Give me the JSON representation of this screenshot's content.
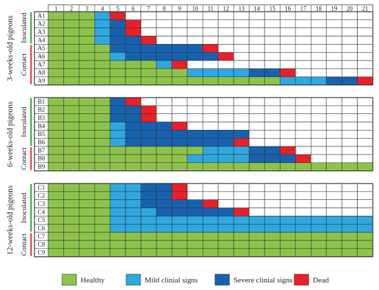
{
  "colors": {
    "Healthy": "#8dc34a",
    "Mild clinial signs": "#2fa8e0",
    "Severe clinial signs": "#1662b0",
    "Dead": "#e8202a",
    "Empty": "#ffffff",
    "grid": "#333333",
    "inoculated_bar": "#3aa843",
    "contact_bar": "#e63b48"
  },
  "chart_data": {
    "type": "heatmap",
    "x_labels": [
      "1",
      "2",
      "3",
      "4",
      "5",
      "6",
      "7",
      "8",
      "9",
      "10",
      "11",
      "12",
      "13",
      "14",
      "15",
      "16",
      "17",
      "18",
      "19",
      "20",
      "21"
    ],
    "legend": [
      "Healthy",
      "Mild clinial signs",
      "Severe clinial signs",
      "Dead"
    ],
    "legend_position": "bottom",
    "state_codes": {
      "H": "Healthy",
      "M": "Mild clinial signs",
      "S": "Severe clinial signs",
      "D": "Dead",
      ".": "Empty"
    },
    "panels": [
      {
        "title": "3-weeks-old pigeons",
        "groups": [
          {
            "label": "Inoculated",
            "rows": [
              "A1",
              "A2",
              "A3",
              "A4"
            ]
          },
          {
            "label": "Contact",
            "rows": [
              "A5",
              "A6",
              "A7",
              "A8",
              "A9"
            ]
          }
        ],
        "rows": [
          {
            "label": "A1",
            "cells": "HHHMD................"
          },
          {
            "label": "A2",
            "cells": "HHHMSD..............."
          },
          {
            "label": "A3",
            "cells": "HHHMSD..............."
          },
          {
            "label": "A4",
            "cells": "HHHMSSD.............."
          },
          {
            "label": "A5",
            "cells": "HHHHSSSSSSD.........."
          },
          {
            "label": "A6",
            "cells": "HHHHMSSSSSSD........."
          },
          {
            "label": "A7",
            "cells": "HHHHHHHMD............"
          },
          {
            "label": "A8",
            "cells": "HHHHHHHHHMMMMSSD....."
          },
          {
            "label": "A9",
            "cells": "HHHHHHHHHHHHHHHMMMSSD"
          }
        ]
      },
      {
        "title": "6-weeks-old pigeons",
        "groups": [
          {
            "label": "Inoculated",
            "rows": [
              "B1",
              "B2",
              "B3",
              "B4",
              "B5",
              "B6"
            ]
          },
          {
            "label": "Contact",
            "rows": [
              "B7",
              "B8",
              "B9"
            ]
          }
        ],
        "rows": [
          {
            "label": "B1",
            "cells": "HHHHSD..............."
          },
          {
            "label": "B2",
            "cells": "HHHHSSD.............."
          },
          {
            "label": "B3",
            "cells": "HHHHSSD.............."
          },
          {
            "label": "B4",
            "cells": "HHHHMSSSD............"
          },
          {
            "label": "B5",
            "cells": "HHHHMSSSSSSSS........"
          },
          {
            "label": "B6",
            "cells": "HHHHMSSSSSSSD........"
          },
          {
            "label": "B7",
            "cells": "HHHHHHHHHHMMMSSD....."
          },
          {
            "label": "B8",
            "cells": "HHHHHHHHHMMMMSSSD...."
          },
          {
            "label": "B9",
            "cells": "HHHHHHHHHHHHHHHHHHHHH"
          }
        ]
      },
      {
        "title": "12-weeks-old pigeons",
        "groups": [
          {
            "label": "Inoculated",
            "rows": [
              "C1",
              "C2",
              "C3",
              "C4",
              "C5",
              "C6"
            ]
          },
          {
            "label": "Contact",
            "rows": [
              "C7",
              "C8",
              "C9"
            ]
          }
        ],
        "rows": [
          {
            "label": "C1",
            "cells": "HHHHMMSSD............"
          },
          {
            "label": "C2",
            "cells": "HHHHMMSSD............"
          },
          {
            "label": "C3",
            "cells": "HHHHMMSSSSD.........."
          },
          {
            "label": "C4",
            "cells": "HHHHMMMSSSSSD........"
          },
          {
            "label": "C5",
            "cells": "HHHHMMMMMMMMMMMMMMMMM"
          },
          {
            "label": "C6",
            "cells": "HHHHMMMMMMMMMMMMMMMMM"
          },
          {
            "label": "C7",
            "cells": "HHHHHHHHHHHHHHHHHHHHH"
          },
          {
            "label": "C8",
            "cells": "HHHHHHHHHHHHHHHHHHHHH"
          },
          {
            "label": "C9",
            "cells": "HHHHHHHHHHHHHHHHHHHHH"
          }
        ]
      }
    ]
  }
}
